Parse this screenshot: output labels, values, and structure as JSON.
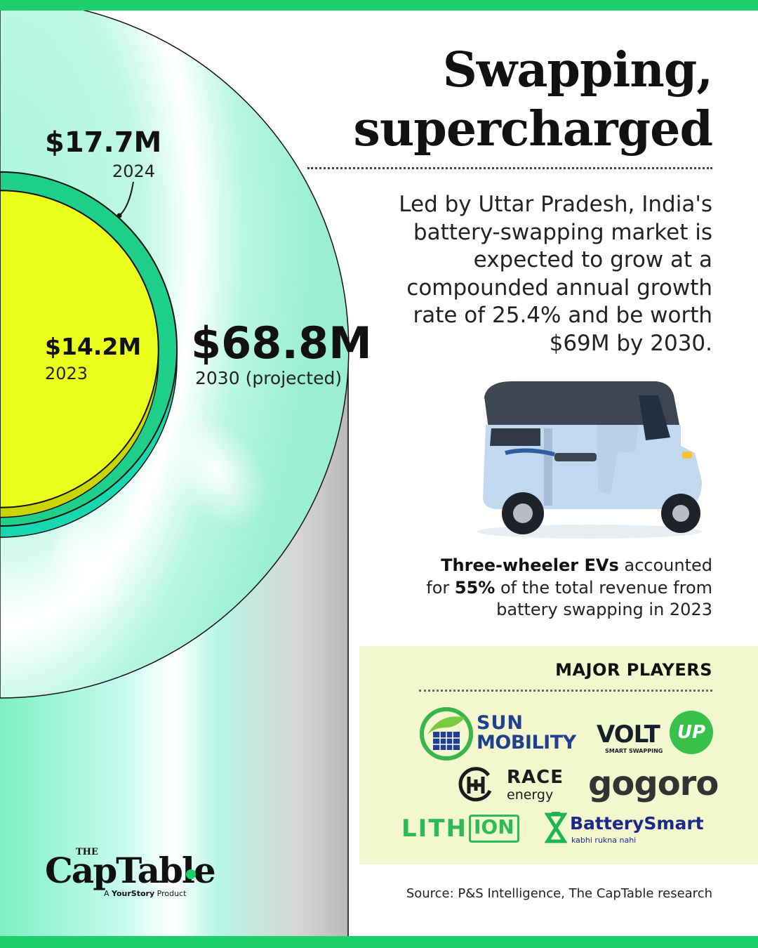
{
  "title_line1": "Swapping,",
  "title_line2": "supercharged",
  "description": "Led by Uttar Pradesh, India's battery-swapping market is expected to grow at a compounded annual growth rate of 25.4% and be worth $69M by 2030.",
  "fact": {
    "bold1": "Three-wheeler EVs",
    "text1": " accounted for ",
    "bold2": "55%",
    "text2": " of the total revenue from battery swapping in 2023"
  },
  "players": {
    "title": "MAJOR PLAYERS",
    "logos": {
      "sun_line1": "SUN",
      "sun_line2": "MOBILITY",
      "volt_word": "VOLT",
      "volt_badge": "UP",
      "volt_tag": "SMART SWAPPING",
      "race_word": "RACE",
      "race_sub": "energy",
      "gogoro": "gogoro",
      "lithion_a": "LITH",
      "lithion_b": "ION",
      "battery_smart": "BatterySmart",
      "battery_tag": "kabhi rukna nahi"
    }
  },
  "source": "Source: P&S Intelligence, The CapTable research",
  "brand": {
    "the": "THE",
    "name": "CapTable",
    "sub_prefix": "A ",
    "sub_bold": "YourStory",
    "sub_suffix": " Product"
  },
  "colors": {
    "accent": "#1ed06a",
    "yellow": "#eaff1a",
    "mint": "#b4f7de",
    "ring": "#19c57f",
    "panel": "#f3f7cd"
  },
  "chart_data": {
    "type": "area",
    "categories": [
      "2023",
      "2024",
      "2030 (projected)"
    ],
    "values": [
      14.2,
      17.7,
      68.8
    ],
    "labels": [
      "$14.2M",
      "$17.7M",
      "$68.8M"
    ],
    "unit": "USD million"
  }
}
